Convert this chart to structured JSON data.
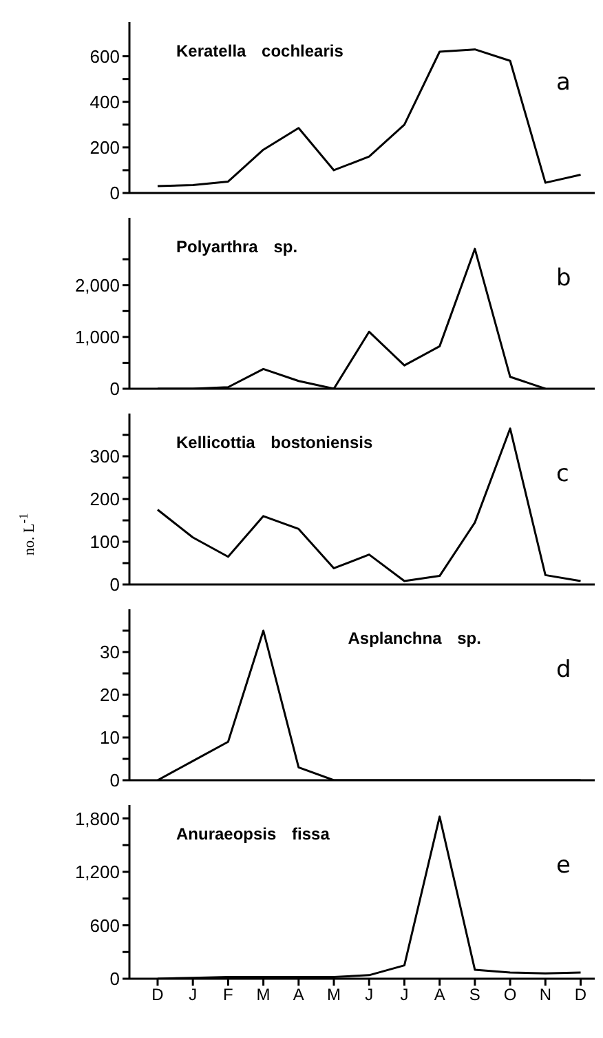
{
  "chart_data": [
    {
      "type": "line",
      "title": "Keratella cochlearis",
      "annotations": [
        "a"
      ],
      "categories": [
        null,
        null,
        null,
        null,
        null,
        null,
        null,
        null,
        null,
        null,
        null,
        null,
        null
      ],
      "tick_labels": "y",
      "marker": "none",
      "grid": false,
      "color": "#000000",
      "values": [
        30,
        35,
        50,
        190,
        285,
        100,
        160,
        300,
        620,
        630,
        580,
        45,
        80
      ],
      "ylim": [
        0,
        750
      ],
      "yticks": [
        0,
        {
          "value": 100,
          "label": null
        },
        200,
        {
          "value": 300,
          "label": null
        },
        400,
        {
          "value": 500,
          "label": null
        },
        600
      ]
    },
    {
      "type": "line",
      "title": "Polyarthra sp.",
      "annotations": [
        "b"
      ],
      "categories": [
        null,
        null,
        null,
        null,
        null,
        null,
        null,
        null,
        null,
        null,
        null,
        null,
        null
      ],
      "tick_labels": "y",
      "marker": "none",
      "grid": false,
      "color": "#000000",
      "values": [
        0,
        0,
        30,
        380,
        150,
        0,
        1100,
        450,
        820,
        2700,
        230,
        0,
        null
      ],
      "ylim": [
        0,
        3300
      ],
      "yticks": [
        0,
        {
          "value": 500,
          "label": null
        },
        {
          "value": 1000,
          "label": "1,000"
        },
        {
          "value": 1500,
          "label": null
        },
        {
          "value": 2000,
          "label": "2,000"
        },
        {
          "value": 2500,
          "label": null
        }
      ]
    },
    {
      "type": "line",
      "title": "Kellicottia bostoniensis",
      "annotations": [
        "c"
      ],
      "ylabel": "no. L$^{-1}$",
      "categories": [
        null,
        null,
        null,
        null,
        null,
        null,
        null,
        null,
        null,
        null,
        null,
        null,
        null
      ],
      "tick_labels": "y",
      "marker": "none",
      "grid": false,
      "color": "#000000",
      "values": [
        175,
        110,
        65,
        160,
        130,
        38,
        70,
        8,
        20,
        145,
        365,
        22,
        8
      ],
      "ylim": [
        0,
        400
      ],
      "yticks": [
        0,
        {
          "value": 50,
          "label": null
        },
        100,
        {
          "value": 150,
          "label": null
        },
        200,
        {
          "value": 250,
          "label": null
        },
        300,
        {
          "value": 350,
          "label": null
        }
      ]
    },
    {
      "type": "line",
      "title": "Asplanchna sp.",
      "annotations": [
        "d"
      ],
      "categories": [
        null,
        null,
        null,
        null,
        null,
        null,
        null,
        null,
        null,
        null,
        null,
        null,
        null
      ],
      "tick_labels": "y",
      "marker": "none",
      "grid": false,
      "color": "#000000",
      "values": [
        0,
        4.5,
        9,
        35,
        3,
        0,
        0,
        0,
        0,
        0,
        0,
        0,
        0
      ],
      "ylim": [
        0,
        40
      ],
      "yticks": [
        0,
        {
          "value": 5,
          "label": null
        },
        10,
        {
          "value": 15,
          "label": null
        },
        20,
        {
          "value": 25,
          "label": null
        },
        30,
        {
          "value": 35,
          "label": null
        }
      ]
    },
    {
      "type": "line",
      "title": "Anuraeopsis fissa",
      "annotations": [
        "e"
      ],
      "categories": [
        "D",
        "J",
        "F",
        "M",
        "A",
        "M",
        "J",
        "J",
        "A",
        "S",
        "O",
        "N",
        "D"
      ],
      "marker": "none",
      "grid": false,
      "color": "#000000",
      "values": [
        0,
        10,
        20,
        20,
        20,
        20,
        40,
        150,
        1820,
        100,
        70,
        60,
        70
      ],
      "ylim": [
        0,
        1950
      ],
      "yticks": [
        0,
        {
          "value": 300,
          "label": null
        },
        600,
        {
          "value": 900,
          "label": null
        },
        {
          "value": 1200,
          "label": "1,200"
        },
        {
          "value": 1500,
          "label": null
        },
        {
          "value": 1800,
          "label": "1,800"
        }
      ]
    }
  ]
}
